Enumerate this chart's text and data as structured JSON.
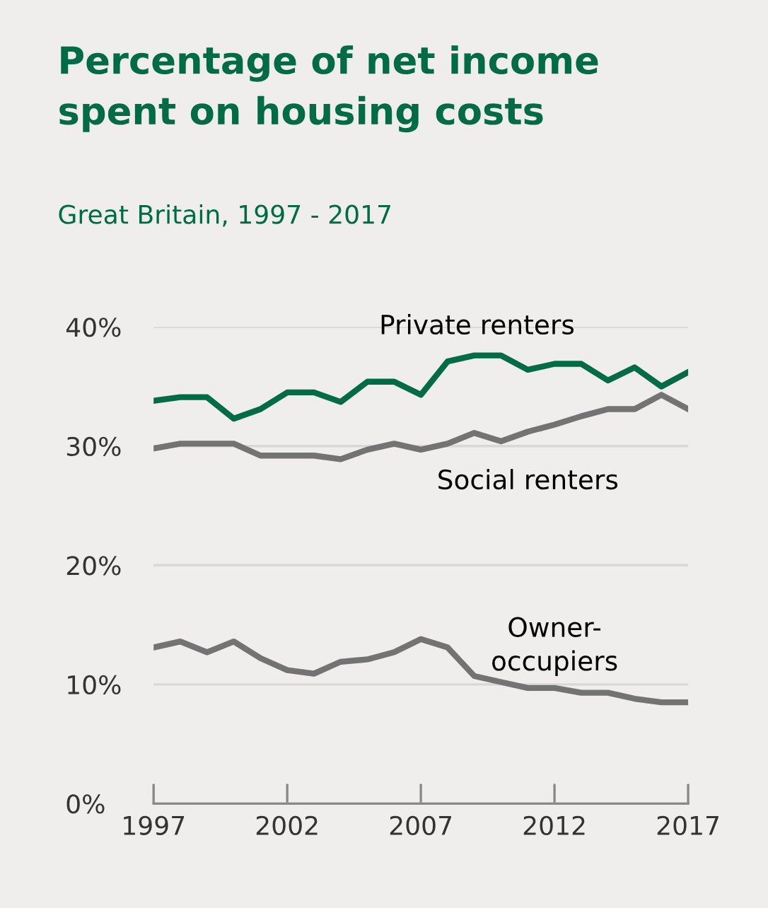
{
  "chart_data": {
    "type": "line",
    "title": "Percentage of net income\nspent on housing costs",
    "subtitle": "Great Britain, 1997 - 2017",
    "x": [
      1997,
      1998,
      1999,
      2000,
      2001,
      2002,
      2003,
      2004,
      2005,
      2006,
      2007,
      2008,
      2009,
      2010,
      2011,
      2012,
      2013,
      2014,
      2015,
      2016,
      2017
    ],
    "series": [
      {
        "name": "Private renters",
        "color": "#006b47",
        "values": [
          33.8,
          34.1,
          34.1,
          32.3,
          33.1,
          34.5,
          34.5,
          33.7,
          35.4,
          35.4,
          34.3,
          37.1,
          37.6,
          37.6,
          36.4,
          36.9,
          36.9,
          35.5,
          36.6,
          35.0,
          36.2
        ]
      },
      {
        "name": "Social renters",
        "color": "#737373",
        "values": [
          29.8,
          30.2,
          30.2,
          30.2,
          29.2,
          29.2,
          29.2,
          28.9,
          29.7,
          30.2,
          29.7,
          30.2,
          31.1,
          30.4,
          31.2,
          31.8,
          32.5,
          33.1,
          33.1,
          34.3,
          33.1
        ]
      },
      {
        "name": "Owner-\noccupiers",
        "color": "#737373",
        "values": [
          13.1,
          13.6,
          12.7,
          13.6,
          12.2,
          11.2,
          10.9,
          11.9,
          12.1,
          12.7,
          13.8,
          13.1,
          10.7,
          10.2,
          9.7,
          9.7,
          9.3,
          9.3,
          8.8,
          8.5,
          8.5
        ]
      }
    ],
    "xlim": [
      1997,
      2017
    ],
    "xticks": [
      1997,
      2002,
      2007,
      2012,
      2017
    ],
    "ylim": [
      0,
      40
    ],
    "yticks": [
      {
        "value": 0,
        "label": "0%"
      },
      {
        "value": 10,
        "label": "10%"
      },
      {
        "value": 20,
        "label": "20%"
      },
      {
        "value": 30,
        "label": "30%"
      },
      {
        "value": 40,
        "label": "40%"
      }
    ],
    "grid": "y",
    "line_style": "solid",
    "marker": "none",
    "legend": false
  }
}
